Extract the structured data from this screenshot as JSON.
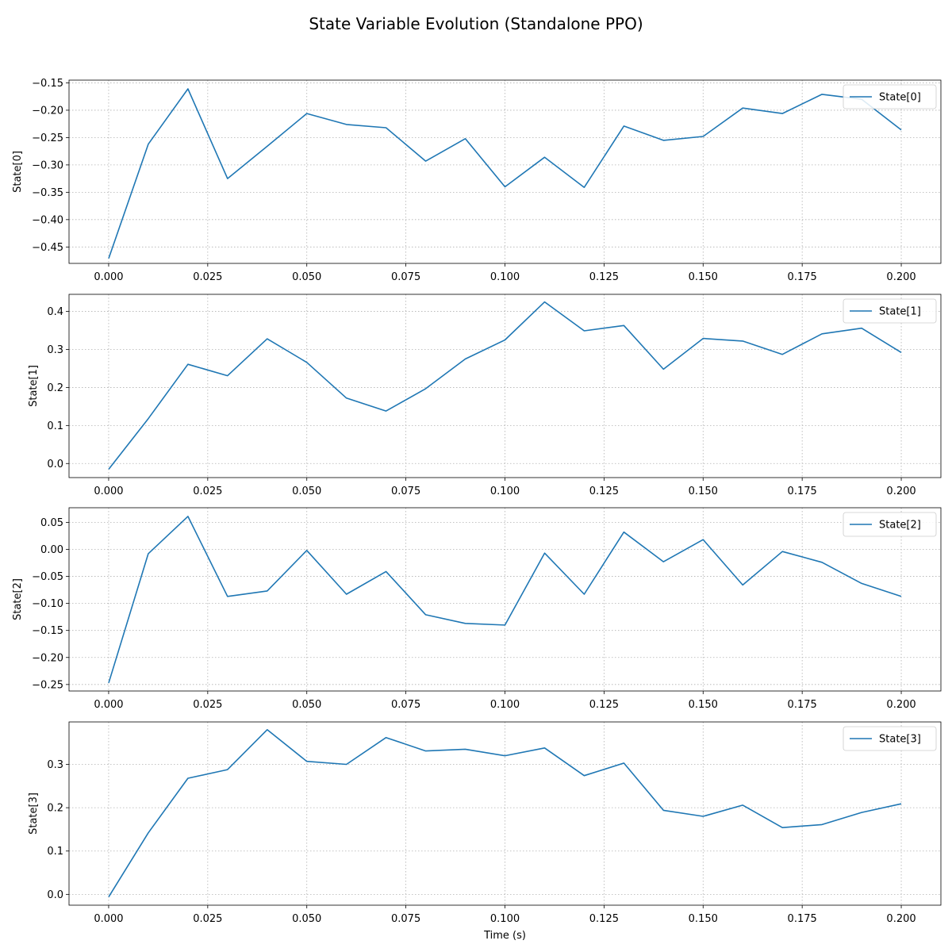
{
  "figure": {
    "title": "State Variable Evolution (Standalone PPO)"
  },
  "colors": {
    "series": "#1f77b4",
    "grid": "#b0b0b0",
    "axes": "#000000"
  },
  "chart_data": [
    {
      "type": "line",
      "title": "",
      "xlabel": "",
      "ylabel": "State[0]",
      "x": [
        0.0,
        0.01,
        0.02,
        0.03,
        0.04,
        0.05,
        0.06,
        0.07,
        0.08,
        0.09,
        0.1,
        0.11,
        0.12,
        0.13,
        0.14,
        0.15,
        0.16,
        0.17,
        0.18,
        0.19,
        0.2
      ],
      "x_ticks": [
        "0.000",
        "0.025",
        "0.050",
        "0.075",
        "0.100",
        "0.125",
        "0.150",
        "0.175",
        "0.200"
      ],
      "xlim": [
        -0.01,
        0.21
      ],
      "ylim": [
        -0.48,
        -0.145
      ],
      "y_ticks": [
        -0.45,
        -0.4,
        -0.35,
        -0.3,
        -0.25,
        -0.2,
        -0.15
      ],
      "y_tick_labels": [
        "−0.45",
        "−0.40",
        "−0.35",
        "−0.30",
        "−0.25",
        "−0.20",
        "−0.15"
      ],
      "grid": true,
      "legend": "upper right",
      "series": [
        {
          "name": "State[0]",
          "values": [
            -0.471,
            -0.262,
            -0.161,
            -0.325,
            -0.266,
            -0.206,
            -0.226,
            -0.232,
            -0.293,
            -0.252,
            -0.34,
            -0.286,
            -0.341,
            -0.229,
            -0.255,
            -0.248,
            -0.196,
            -0.206,
            -0.171,
            -0.18,
            -0.236
          ]
        }
      ]
    },
    {
      "type": "line",
      "title": "",
      "xlabel": "",
      "ylabel": "State[1]",
      "x": [
        0.0,
        0.01,
        0.02,
        0.03,
        0.04,
        0.05,
        0.06,
        0.07,
        0.08,
        0.09,
        0.1,
        0.11,
        0.12,
        0.13,
        0.14,
        0.15,
        0.16,
        0.17,
        0.18,
        0.19,
        0.2
      ],
      "x_ticks": [
        "0.000",
        "0.025",
        "0.050",
        "0.075",
        "0.100",
        "0.125",
        "0.150",
        "0.175",
        "0.200"
      ],
      "xlim": [
        -0.01,
        0.21
      ],
      "ylim": [
        -0.037,
        0.445
      ],
      "y_ticks": [
        0.0,
        0.1,
        0.2,
        0.3,
        0.4
      ],
      "y_tick_labels": [
        "0.0",
        "0.1",
        "0.2",
        "0.3",
        "0.4"
      ],
      "grid": true,
      "legend": "upper right",
      "series": [
        {
          "name": "State[1]",
          "values": [
            -0.015,
            0.118,
            0.261,
            0.231,
            0.328,
            0.266,
            0.172,
            0.138,
            0.197,
            0.275,
            0.325,
            0.425,
            0.349,
            0.363,
            0.248,
            0.329,
            0.322,
            0.287,
            0.341,
            0.356,
            0.292
          ]
        }
      ]
    },
    {
      "type": "line",
      "title": "",
      "xlabel": "",
      "ylabel": "State[2]",
      "x": [
        0.0,
        0.01,
        0.02,
        0.03,
        0.04,
        0.05,
        0.06,
        0.07,
        0.08,
        0.09,
        0.1,
        0.11,
        0.12,
        0.13,
        0.14,
        0.15,
        0.16,
        0.17,
        0.18,
        0.19,
        0.2
      ],
      "x_ticks": [
        "0.000",
        "0.025",
        "0.050",
        "0.075",
        "0.100",
        "0.125",
        "0.150",
        "0.175",
        "0.200"
      ],
      "xlim": [
        -0.01,
        0.21
      ],
      "ylim": [
        -0.262,
        0.077
      ],
      "y_ticks": [
        -0.25,
        -0.2,
        -0.15,
        -0.1,
        -0.05,
        0.0,
        0.05
      ],
      "y_tick_labels": [
        "−0.25",
        "−0.20",
        "−0.15",
        "−0.10",
        "−0.05",
        "0.00",
        "0.05"
      ],
      "grid": true,
      "legend": "upper right",
      "series": [
        {
          "name": "State[2]",
          "values": [
            -0.247,
            -0.008,
            0.061,
            -0.087,
            -0.077,
            -0.002,
            -0.083,
            -0.041,
            -0.121,
            -0.137,
            -0.14,
            -0.007,
            -0.083,
            0.032,
            -0.023,
            0.018,
            -0.066,
            -0.004,
            -0.024,
            -0.063,
            -0.087
          ]
        }
      ]
    },
    {
      "type": "line",
      "title": "",
      "xlabel": "Time (s)",
      "ylabel": "State[3]",
      "x": [
        0.0,
        0.01,
        0.02,
        0.03,
        0.04,
        0.05,
        0.06,
        0.07,
        0.08,
        0.09,
        0.1,
        0.11,
        0.12,
        0.13,
        0.14,
        0.15,
        0.16,
        0.17,
        0.18,
        0.19,
        0.2
      ],
      "x_ticks": [
        "0.000",
        "0.025",
        "0.050",
        "0.075",
        "0.100",
        "0.125",
        "0.150",
        "0.175",
        "0.200"
      ],
      "xlim": [
        -0.01,
        0.21
      ],
      "ylim": [
        -0.025,
        0.398
      ],
      "y_ticks": [
        0.0,
        0.1,
        0.2,
        0.3
      ],
      "y_tick_labels": [
        "0.0",
        "0.1",
        "0.2",
        "0.3"
      ],
      "grid": true,
      "legend": "upper right",
      "series": [
        {
          "name": "State[3]",
          "values": [
            -0.006,
            0.142,
            0.268,
            0.288,
            0.38,
            0.307,
            0.3,
            0.362,
            0.331,
            0.335,
            0.32,
            0.338,
            0.274,
            0.303,
            0.194,
            0.18,
            0.206,
            0.154,
            0.161,
            0.189,
            0.209
          ]
        }
      ]
    }
  ]
}
